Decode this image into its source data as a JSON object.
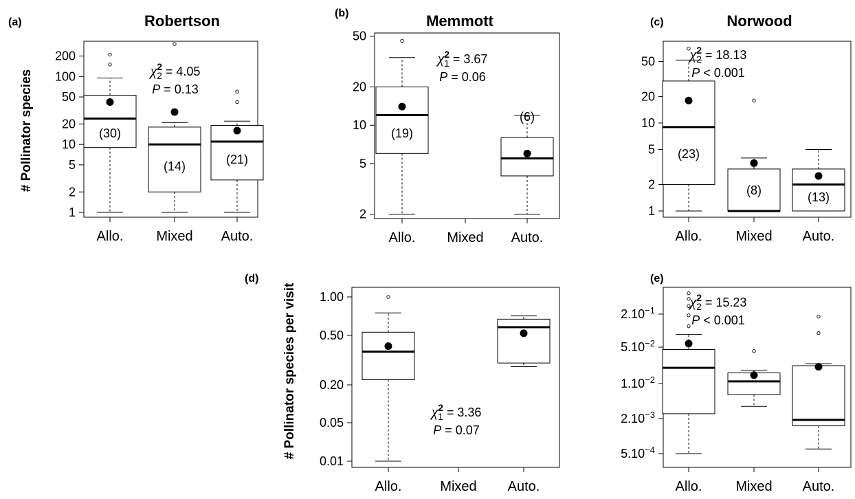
{
  "ylabel_top": "# Pollinator species",
  "ylabel_bottom": "# Pollinator species per visit",
  "chart_data": [
    {
      "type": "boxplot",
      "panel": "(a)",
      "title": "Robertson",
      "scale": "log",
      "ylim": [
        0.85,
        330
      ],
      "yticks": [
        1,
        2,
        5,
        10,
        20,
        50,
        100,
        200
      ],
      "ytick_labels": [
        "1",
        "2",
        "5",
        "10",
        "20",
        "50",
        "100",
        "200"
      ],
      "categories": [
        "Allo.",
        "Mixed",
        "Auto."
      ],
      "boxes": [
        {
          "n": "(30)",
          "whisker_low": 1,
          "q1": 9,
          "median": 24,
          "q3": 53,
          "whisker_high": 95,
          "mean": 42,
          "outliers": [
            150,
            210
          ]
        },
        {
          "n": "(14)",
          "whisker_low": 1,
          "q1": 2,
          "median": 10,
          "q3": 18,
          "whisker_high": 21,
          "mean": 30,
          "outliers": [
            300
          ]
        },
        {
          "n": "(21)",
          "whisker_low": 1,
          "q1": 3,
          "median": 11,
          "q3": 19,
          "whisker_high": 22,
          "mean": 16,
          "outliers": [
            42,
            60
          ]
        }
      ],
      "stat": {
        "test": "χ",
        "sup": "2",
        "sub": "2",
        "value": " = 4.05",
        "p_label": "P",
        "p_value": " = 0.13"
      }
    },
    {
      "type": "boxplot",
      "panel": "(b)",
      "title": "Memmott",
      "scale": "log",
      "ylim": [
        1.85,
        53
      ],
      "yticks": [
        2,
        5,
        10,
        20,
        50
      ],
      "ytick_labels": [
        "2",
        "5",
        "10",
        "20",
        "50"
      ],
      "categories": [
        "Allo.",
        "Mixed",
        "Auto."
      ],
      "boxes": [
        {
          "n": "(19)",
          "whisker_low": 2,
          "q1": 6,
          "median": 12,
          "q3": 20,
          "whisker_high": 34,
          "mean": 14,
          "outliers": [
            46
          ]
        },
        null,
        {
          "n": "(6)",
          "whisker_low": 2,
          "q1": 4,
          "median": 5.5,
          "q3": 8,
          "whisker_high": 12,
          "mean": 6,
          "outliers": []
        }
      ],
      "stat": {
        "test": "χ",
        "sup": "2",
        "sub": "1",
        "value": " = 3.67",
        "p_label": "P",
        "p_value": " = 0.06"
      }
    },
    {
      "type": "boxplot",
      "panel": "(c)",
      "title": "Norwood",
      "scale": "log",
      "ylim": [
        0.85,
        85
      ],
      "yticks": [
        1,
        2,
        5,
        10,
        20,
        50
      ],
      "ytick_labels": [
        "1",
        "2",
        "5",
        "10",
        "20",
        "50"
      ],
      "categories": [
        "Allo.",
        "Mixed",
        "Auto."
      ],
      "boxes": [
        {
          "n": "(23)",
          "whisker_low": 1,
          "q1": 2,
          "median": 9,
          "q3": 30,
          "whisker_high": 52,
          "mean": 18,
          "outliers": [
            70
          ]
        },
        {
          "n": "(8)",
          "whisker_low": 1,
          "q1": 1,
          "median": 1,
          "q3": 3,
          "whisker_high": 4,
          "mean": 3.5,
          "outliers": [
            18
          ]
        },
        {
          "n": "(13)",
          "whisker_low": 1,
          "q1": 1,
          "median": 2,
          "q3": 3,
          "whisker_high": 5,
          "mean": 2.5,
          "outliers": []
        }
      ],
      "stat": {
        "test": "χ",
        "sup": "2",
        "sub": "2",
        "value": " = 18.13",
        "p_label": "P",
        "p_value": " < 0.001"
      }
    },
    {
      "type": "boxplot",
      "panel": "(d)",
      "scale": "custom",
      "ylim": [
        0.0082,
        1.2
      ],
      "yticks": [
        0.01,
        0.05,
        0.2,
        0.5,
        1.0
      ],
      "ytick_labels": [
        "0.01",
        "0.05",
        "0.20",
        "0.50",
        "1.00"
      ],
      "categories": [
        "Allo.",
        "Mixed",
        "Auto."
      ],
      "boxes": [
        {
          "whisker_low": 0.01,
          "q1": 0.22,
          "median": 0.37,
          "q3": 0.53,
          "whisker_high": 0.75,
          "mean": 0.41,
          "outliers": [
            1.0
          ]
        },
        null,
        {
          "whisker_low": 0.28,
          "q1": 0.3,
          "median": 0.58,
          "q3": 0.67,
          "whisker_high": 0.71,
          "mean": 0.52,
          "outliers": []
        }
      ],
      "stat": {
        "test": "χ",
        "sup": "2",
        "sub": "1",
        "value": " = 3.36",
        "p_label": "P",
        "p_value": " = 0.07"
      }
    },
    {
      "type": "boxplot",
      "panel": "(e)",
      "scale": "custom",
      "ylim": [
        0.00028,
        0.75
      ],
      "yticks": [
        0.0005,
        0.002,
        0.01,
        0.05,
        0.2
      ],
      "ytick_labels": [
        {
          "m": "5.10",
          "e": "−4"
        },
        {
          "m": "2.10",
          "e": "−3"
        },
        {
          "m": "1.10",
          "e": "−2"
        },
        {
          "m": "5.10",
          "e": "−2"
        },
        {
          "m": "2.10",
          "e": "−1"
        }
      ],
      "categories": [
        "Allo.",
        "Mixed",
        "Auto."
      ],
      "boxes": [
        {
          "whisker_low": 0.0005,
          "q1": 0.0025,
          "median": 0.02,
          "q3": 0.045,
          "whisker_high": 0.085,
          "mean": 0.058,
          "outliers": [
            0.12,
            0.19,
            0.28,
            0.38,
            0.48
          ]
        },
        {
          "whisker_low": 0.0035,
          "q1": 0.006,
          "median": 0.011,
          "q3": 0.016,
          "whisker_high": 0.018,
          "mean": 0.0145,
          "outliers": [
            0.042
          ]
        },
        {
          "whisker_low": 0.0006,
          "q1": 0.0015,
          "median": 0.0019,
          "q3": 0.022,
          "whisker_high": 0.024,
          "mean": 0.021,
          "outliers": [
            0.09,
            0.18
          ]
        }
      ],
      "stat": {
        "test": "χ",
        "sup": "2",
        "sub": "2",
        "value": " = 15.23",
        "p_label": "P",
        "p_value": " < 0.001"
      }
    }
  ]
}
